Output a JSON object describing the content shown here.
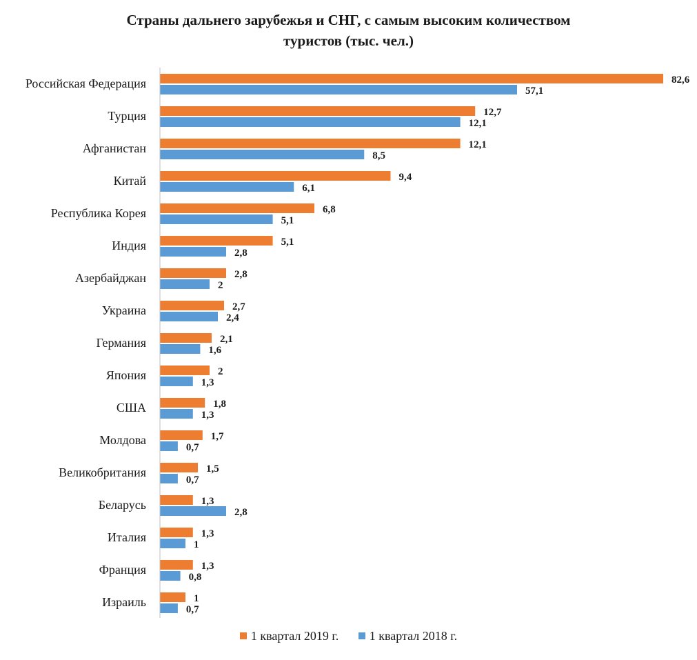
{
  "chart_data": {
    "type": "bar",
    "orientation": "horizontal",
    "title_lines": [
      "Страны дальнего зарубежья и СНГ, с самым высоким количеством",
      "туристов (тыс. чел.)"
    ],
    "categories": [
      "Российская Федерация",
      "Турция",
      "Афганистан",
      "Китай",
      "Республика Корея",
      "Индия",
      "Азербайджан",
      "Украина",
      "Германия",
      "Япония",
      "США",
      "Молдова",
      "Великобритания",
      "Беларусь",
      "Италия",
      "Франция",
      "Израиль"
    ],
    "series": [
      {
        "name": "1 квартал 2019 г.",
        "color": "#ED7D31",
        "values": [
          82.6,
          12.7,
          12.1,
          9.4,
          6.8,
          5.1,
          2.8,
          2.7,
          2.1,
          2,
          1.8,
          1.7,
          1.5,
          1.3,
          1.3,
          1.3,
          1
        ],
        "labels": [
          "82,6",
          "12,7",
          "12,1",
          "9,4",
          "6,8",
          "5,1",
          "2,8",
          "2,7",
          "2,1",
          "2",
          "1,8",
          "1,7",
          "1,5",
          "1,3",
          "1,3",
          "1,3",
          "1"
        ]
      },
      {
        "name": "1 квартал 2018 г.",
        "color": "#5B9BD5",
        "values": [
          57.1,
          12.1,
          8.5,
          6.1,
          5.1,
          2.8,
          2,
          2.4,
          1.6,
          1.3,
          1.3,
          0.7,
          0.7,
          2.8,
          1,
          0.8,
          0.7
        ],
        "labels": [
          "57,1",
          "12,1",
          "8,5",
          "6,1",
          "5,1",
          "2,8",
          "2",
          "2,4",
          "1,6",
          "1,3",
          "1,3",
          "0,7",
          "0,7",
          "2,8",
          "1",
          "0,8",
          "0,7"
        ]
      }
    ],
    "axis_scale": "non-linear (bars not proportional)",
    "grid": false,
    "legend_position": "bottom"
  }
}
